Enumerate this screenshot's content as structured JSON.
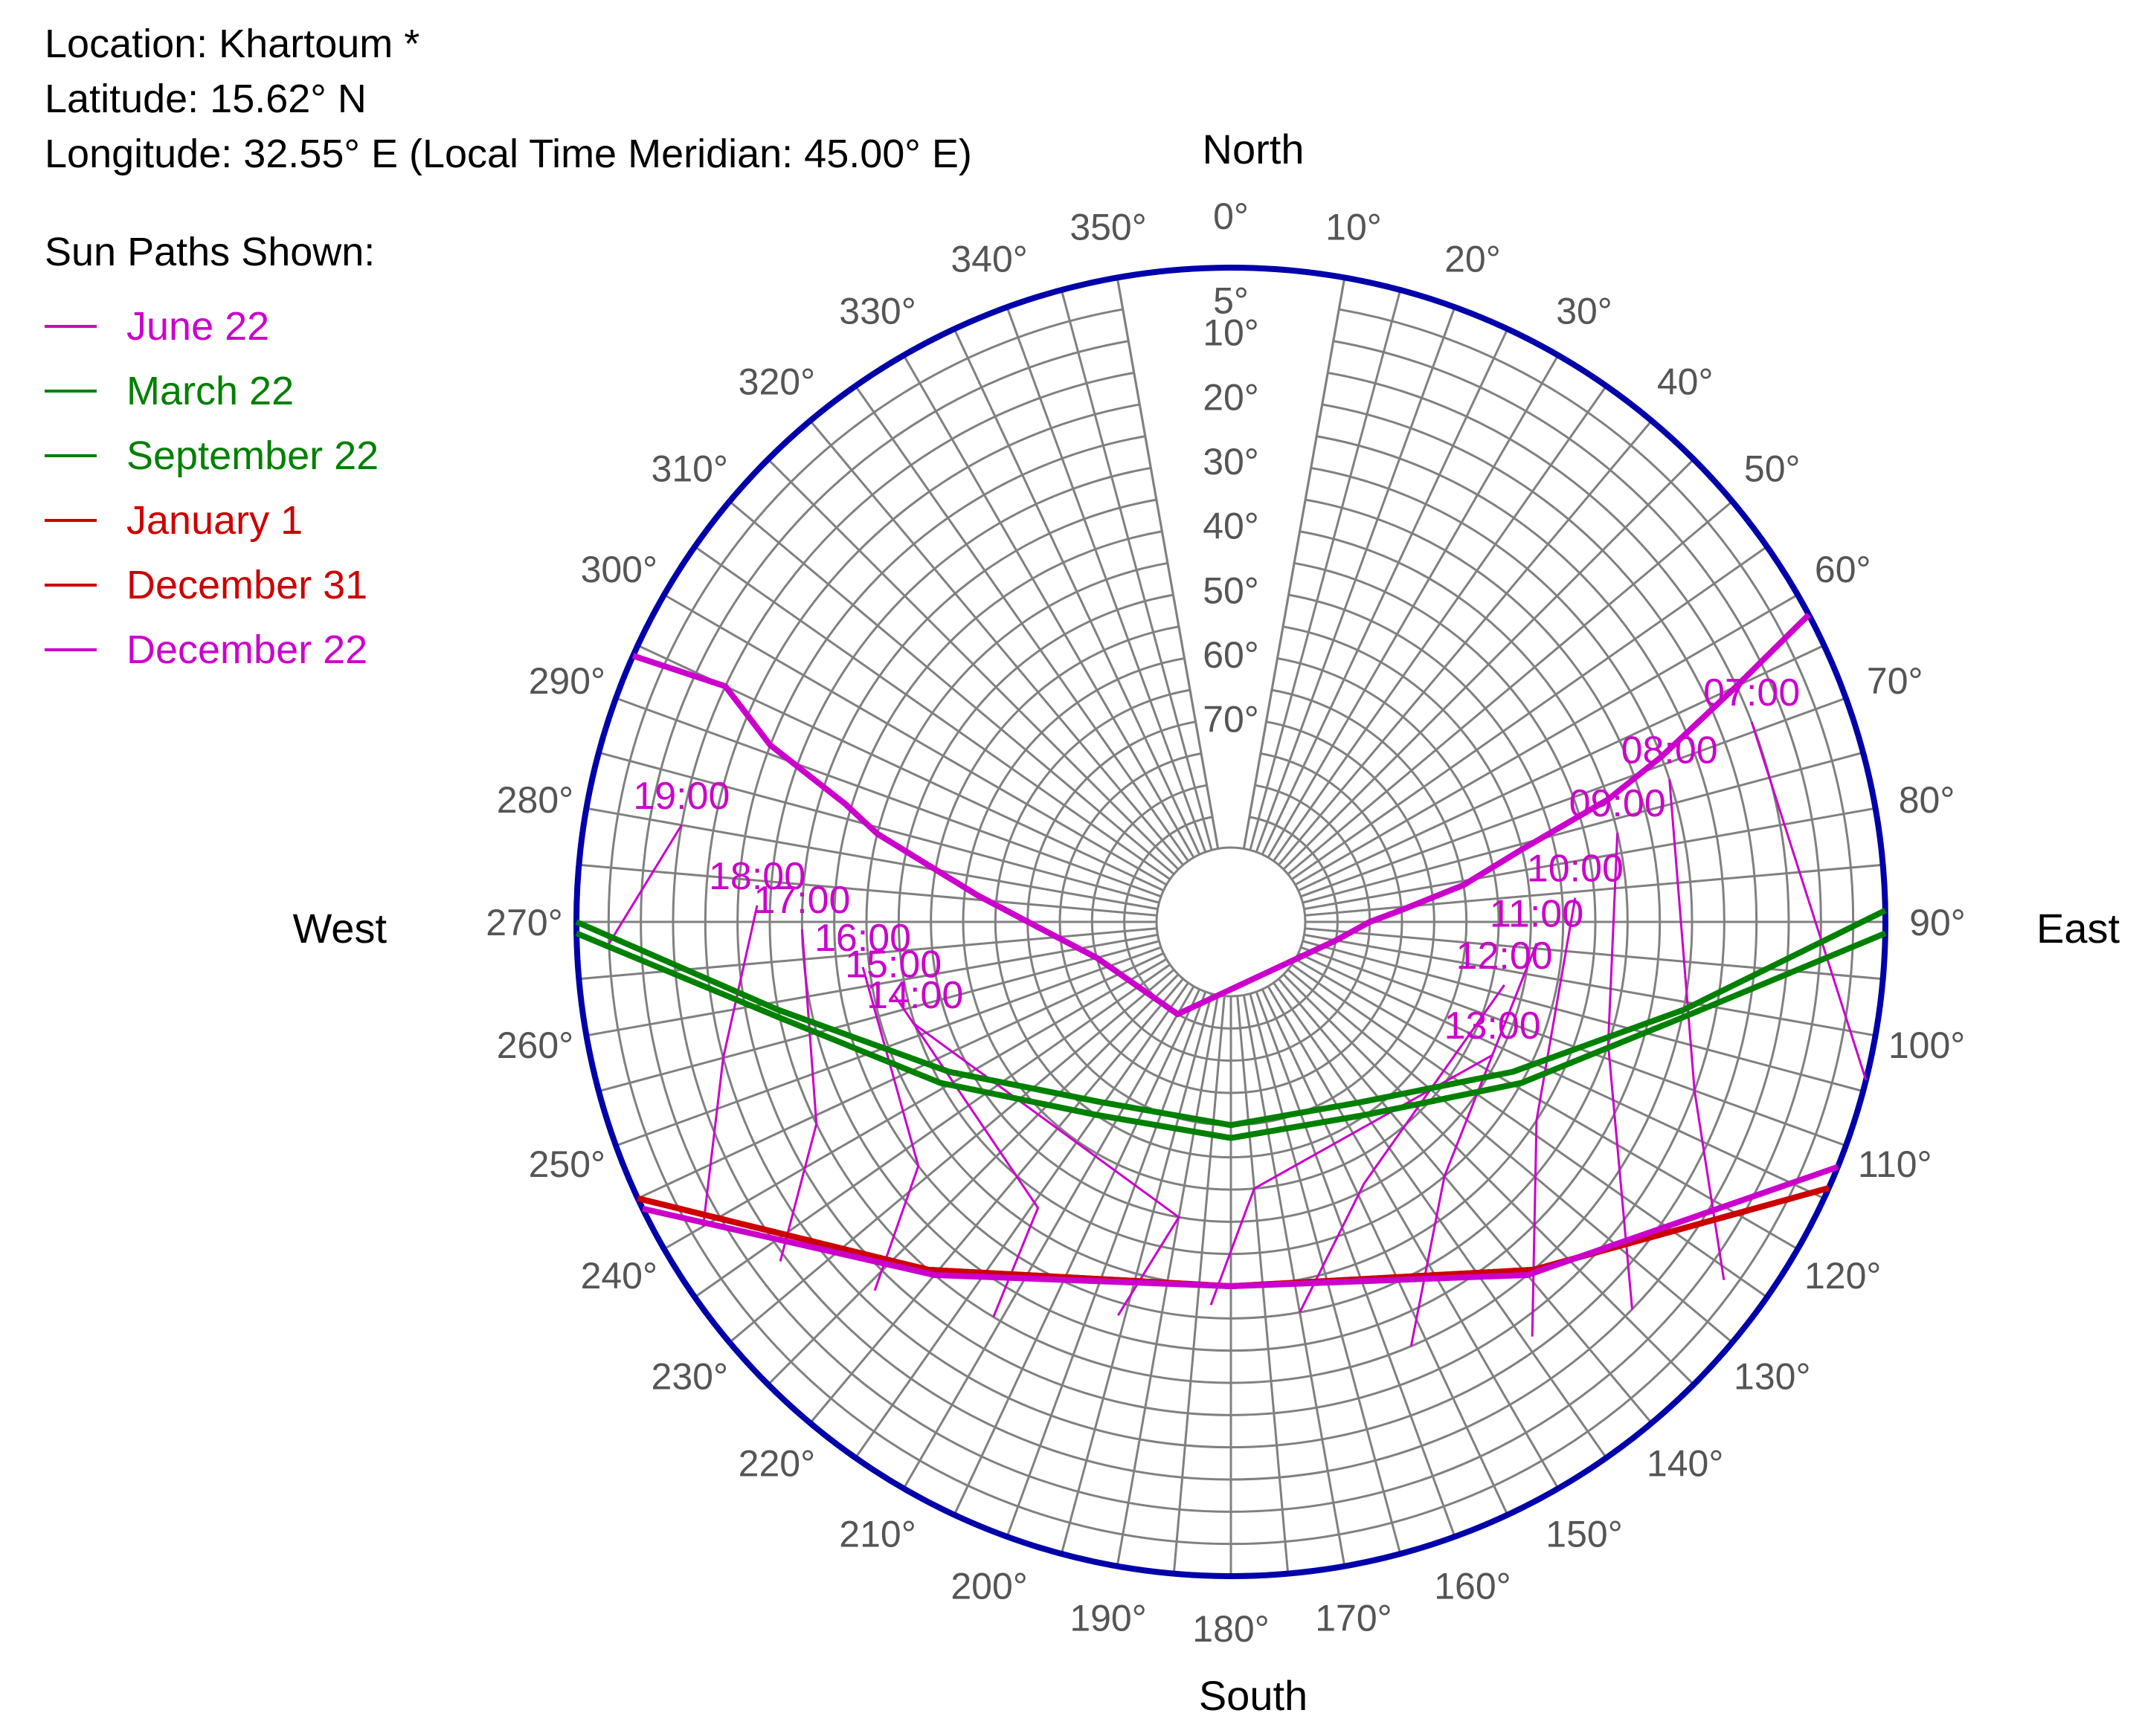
{
  "info": {
    "location": "Location: Khartoum *",
    "latitude": "Latitude: 15.62° N",
    "longitude": "Longitude: 32.55° E (Local Time Meridian: 45.00° E)"
  },
  "legend": {
    "title": "Sun Paths Shown:",
    "items": [
      {
        "label": "June 22",
        "color": "#cc00cc"
      },
      {
        "label": "March 22",
        "color": "#008000"
      },
      {
        "label": "September 22",
        "color": "#008000"
      },
      {
        "label": "January 1",
        "color": "#cc0000"
      },
      {
        "label": "December 31",
        "color": "#cc0000"
      },
      {
        "label": "December 22",
        "color": "#cc00cc"
      }
    ]
  },
  "chart_data": {
    "type": "sun-path polar diagram",
    "directions": {
      "north": "North",
      "south": "South",
      "east": "East",
      "west": "West"
    },
    "azimuth_ticks": [
      0,
      10,
      20,
      30,
      40,
      50,
      60,
      70,
      80,
      90,
      100,
      110,
      120,
      130,
      140,
      150,
      160,
      170,
      180,
      190,
      200,
      210,
      220,
      230,
      240,
      250,
      260,
      270,
      280,
      290,
      300,
      310,
      320,
      330,
      340,
      350
    ],
    "azimuth_suffix": "°",
    "altitude_ticks": [
      5,
      10,
      20,
      30,
      40,
      50,
      60,
      70
    ],
    "altitude_suffix": "°",
    "grid": true,
    "colors": {
      "grid": "#808080",
      "outline": "#0000aa",
      "magenta": "#cc00cc",
      "green": "#008000",
      "red": "#cc0000"
    },
    "series": [
      {
        "name": "June 22",
        "color": "#cc00cc",
        "points": [
          [
            294,
            0
          ],
          [
            295,
            15
          ],
          [
            291,
            25
          ],
          [
            287,
            39
          ],
          [
            284,
            45
          ],
          [
            276,
            62
          ],
          [
            268,
            72
          ],
          [
            255,
            80
          ],
          [
            210,
            85
          ],
          [
            100,
            85
          ],
          [
            90,
            80
          ],
          [
            86,
            75
          ],
          [
            81,
            65
          ],
          [
            76,
            55
          ],
          [
            72,
            40
          ],
          [
            69,
            30
          ],
          [
            65,
            15
          ],
          [
            62,
            0
          ]
        ]
      },
      {
        "name": "March 22",
        "color": "#008000",
        "points": [
          [
            269,
            0
          ],
          [
            258,
            30
          ],
          [
            241,
            50
          ],
          [
            215,
            65
          ],
          [
            180,
            68
          ],
          [
            145,
            65
          ],
          [
            119,
            50
          ],
          [
            102,
            30
          ],
          [
            91,
            0
          ]
        ]
      },
      {
        "name": "September 22",
        "color": "#008000",
        "points": [
          [
            270,
            0
          ],
          [
            259,
            30
          ],
          [
            242,
            52
          ],
          [
            216,
            67
          ],
          [
            180,
            70
          ],
          [
            144,
            67
          ],
          [
            118,
            52
          ],
          [
            101,
            30
          ],
          [
            89,
            0
          ]
        ]
      },
      {
        "name": "January 1",
        "color": "#cc0000",
        "points": [
          [
            245,
            0
          ],
          [
            221,
            30
          ],
          [
            180,
            45
          ],
          [
            139,
            30
          ],
          [
            114,
            0
          ]
        ]
      },
      {
        "name": "December 31",
        "color": "#cc0000",
        "points": [
          [
            245,
            0
          ],
          [
            221,
            30
          ],
          [
            180,
            45
          ],
          [
            139,
            30
          ],
          [
            114,
            0
          ]
        ]
      },
      {
        "name": "December 22",
        "color": "#cc00cc",
        "points": [
          [
            244,
            0
          ],
          [
            220,
            30
          ],
          [
            180,
            45
          ],
          [
            140,
            30
          ],
          [
            112,
            0
          ]
        ]
      }
    ],
    "hour_lines": [
      {
        "label": "07:00",
        "points": [
          [
            69,
            15
          ],
          [
            104,
            0
          ]
        ]
      },
      {
        "label": "08:00",
        "points": [
          [
            72,
            30
          ],
          [
            110,
            25
          ],
          [
            126,
            7
          ]
        ]
      },
      {
        "label": "09:00",
        "points": [
          [
            77,
            40
          ],
          [
            108,
            40
          ],
          [
            134,
            15
          ]
        ]
      },
      {
        "label": "10:00",
        "points": [
          [
            86,
            48
          ],
          [
            123,
            45
          ],
          [
            144,
            22
          ]
        ]
      },
      {
        "label": "11:00",
        "points": [
          [
            94,
            54
          ],
          [
            140,
            50
          ],
          [
            157,
            30
          ]
        ]
      },
      {
        "label": "12:00",
        "points": [
          [
            103,
            58
          ],
          [
            153,
            56
          ],
          [
            170,
            40
          ]
        ]
      },
      {
        "label": "13:00",
        "points": [
          [
            117,
            56
          ],
          [
            175,
            60
          ],
          [
            183,
            42
          ]
        ]
      },
      {
        "label": "14:00",
        "points": [
          [
            252,
            50
          ],
          [
            190,
            55
          ],
          [
            196,
            38
          ]
        ]
      },
      {
        "label": "15:00",
        "points": [
          [
            258,
            48
          ],
          [
            214,
            48
          ],
          [
            211,
            30
          ]
        ]
      },
      {
        "label": "16:00",
        "points": [
          [
            263,
            44
          ],
          [
            232,
            40
          ],
          [
            224,
            22
          ]
        ]
      },
      {
        "label": "17:00",
        "points": [
          [
            269,
            35
          ],
          [
            244,
            30
          ],
          [
            233,
            14
          ]
        ]
      },
      {
        "label": "18:00",
        "points": [
          [
            272,
            28
          ],
          [
            255,
            20
          ],
          [
            240,
            7
          ]
        ]
      },
      {
        "label": "19:00",
        "points": [
          [
            280,
            15
          ],
          [
            268,
            5
          ]
        ]
      }
    ]
  }
}
